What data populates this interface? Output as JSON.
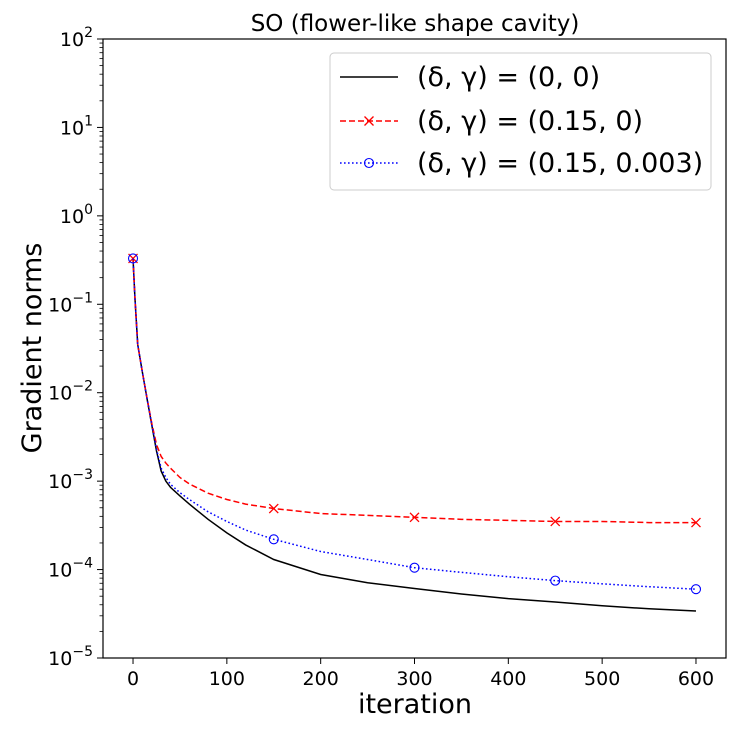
{
  "chart_data": {
    "type": "line",
    "title": "SO (flower-like shape cavity)",
    "xlabel": "iteration",
    "ylabel": "Gradient norms",
    "yscale": "log",
    "xlim": [
      -32,
      632
    ],
    "ylim": [
      1e-05,
      100
    ],
    "xticks": [
      0,
      100,
      200,
      300,
      400,
      500,
      600
    ],
    "xtick_labels": [
      "0",
      "100",
      "200",
      "300",
      "400",
      "500",
      "600"
    ],
    "yticks": [
      1e-05,
      0.0001,
      0.001,
      0.01,
      0.1,
      1,
      10,
      100
    ],
    "ytick_labels": [
      {
        "base": "10",
        "exp": "−5"
      },
      {
        "base": "10",
        "exp": "−4"
      },
      {
        "base": "10",
        "exp": "−3"
      },
      {
        "base": "10",
        "exp": "−2"
      },
      {
        "base": "10",
        "exp": "−1"
      },
      {
        "base": "10",
        "exp": "0"
      },
      {
        "base": "10",
        "exp": "1"
      },
      {
        "base": "10",
        "exp": "2"
      }
    ],
    "legend_position": "upper-right",
    "series": [
      {
        "name": "(δ, γ) = (0, 0)",
        "label_parts": [
          "(δ, γ) = (0, 0)"
        ],
        "color": "#000000",
        "dash": "solid",
        "marker": "none",
        "x": [
          0,
          2,
          5,
          10,
          15,
          20,
          25,
          30,
          35,
          40,
          50,
          60,
          80,
          100,
          120,
          150,
          200,
          250,
          300,
          350,
          400,
          450,
          500,
          550,
          600
        ],
        "y": [
          0.33,
          0.12,
          0.035,
          0.017,
          0.0085,
          0.0043,
          0.0022,
          0.0013,
          0.001,
          0.00085,
          0.00068,
          0.00055,
          0.00037,
          0.00026,
          0.00019,
          0.00013,
          8.8e-05,
          7.1e-05,
          6.1e-05,
          5.3e-05,
          4.7e-05,
          4.3e-05,
          3.9e-05,
          3.6e-05,
          3.4e-05
        ],
        "marker_x": []
      },
      {
        "name": "(δ, γ) = (0.15, 0)",
        "color": "#ff0000",
        "dash": "dashed",
        "marker": "x",
        "x": [
          0,
          2,
          5,
          10,
          15,
          20,
          25,
          30,
          35,
          40,
          50,
          60,
          80,
          100,
          120,
          150,
          200,
          250,
          300,
          350,
          400,
          450,
          500,
          550,
          600
        ],
        "y": [
          0.33,
          0.12,
          0.035,
          0.017,
          0.0086,
          0.0045,
          0.0026,
          0.0019,
          0.0016,
          0.0014,
          0.0011,
          0.00093,
          0.00073,
          0.00062,
          0.00055,
          0.00049,
          0.00043,
          0.00041,
          0.00039,
          0.00037,
          0.00036,
          0.00035,
          0.00035,
          0.00034,
          0.00034
        ],
        "marker_x": [
          0,
          150,
          300,
          450,
          600
        ]
      },
      {
        "name": "(δ, γ) = (0.15, 0.003)",
        "color": "#0000ff",
        "dash": "dotted",
        "marker": "o",
        "x": [
          0,
          2,
          5,
          10,
          15,
          20,
          25,
          30,
          35,
          40,
          50,
          60,
          80,
          100,
          120,
          150,
          200,
          250,
          300,
          350,
          400,
          450,
          500,
          550,
          600
        ],
        "y": [
          0.33,
          0.12,
          0.035,
          0.017,
          0.0085,
          0.0044,
          0.0023,
          0.0014,
          0.0011,
          0.00092,
          0.00074,
          0.00062,
          0.00045,
          0.00035,
          0.00028,
          0.00022,
          0.00016,
          0.00013,
          0.000105,
          9.3e-05,
          8.3e-05,
          7.5e-05,
          6.9e-05,
          6.4e-05,
          6e-05
        ],
        "marker_x": [
          0,
          150,
          300,
          450,
          600
        ]
      }
    ]
  }
}
